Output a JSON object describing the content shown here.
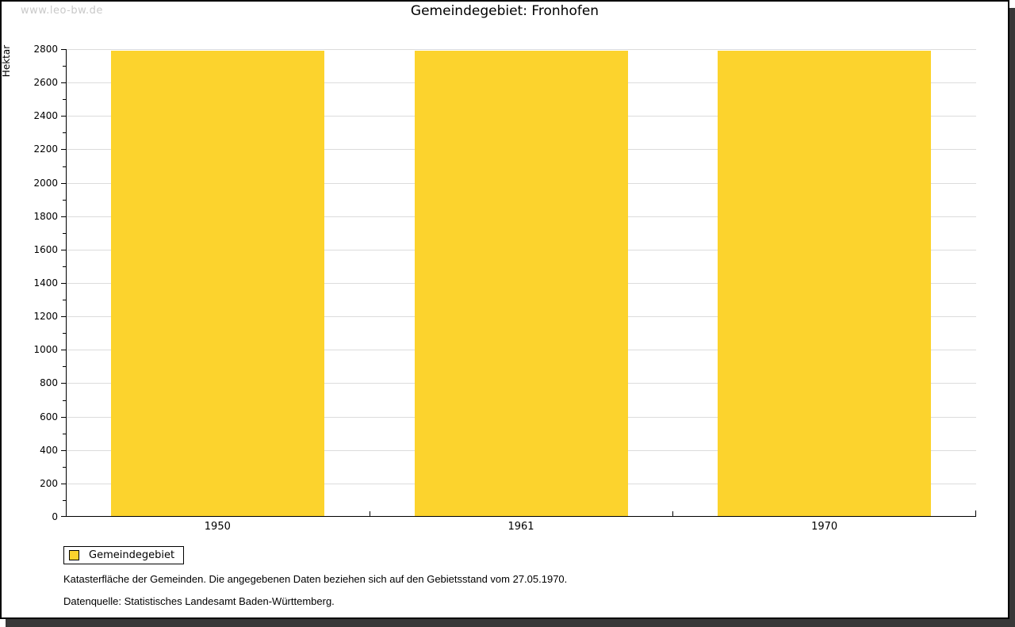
{
  "watermark": "www.leo-bw.de",
  "title": "Gemeindegebiet: Fronhofen",
  "chart_data": {
    "type": "bar",
    "title": "Gemeindegebiet: Fronhofen",
    "categories": [
      "1950",
      "1961",
      "1970"
    ],
    "series": [
      {
        "name": "Gemeindegebiet",
        "values": [
          2790,
          2790,
          2790
        ]
      }
    ],
    "xlabel": "",
    "ylabel": "Hektar",
    "ylim": [
      0,
      2800
    ],
    "y_major_step": 200,
    "y_minor_step": 100,
    "grid": "horizontal-major-only",
    "legend_position": "bottom-left",
    "bar_color": "#FCD32D",
    "grid_color": "#DCDCDC"
  },
  "legend": {
    "items": [
      {
        "label": "Gemeindegebiet",
        "color": "#FCD32D"
      }
    ]
  },
  "footer": {
    "line1": "Katasterfläche der Gemeinden. Die angegebenen Daten beziehen sich auf den Gebietsstand vom 27.05.1970.",
    "line2": "Datenquelle: Statistisches Landesamt Baden-Württemberg."
  }
}
